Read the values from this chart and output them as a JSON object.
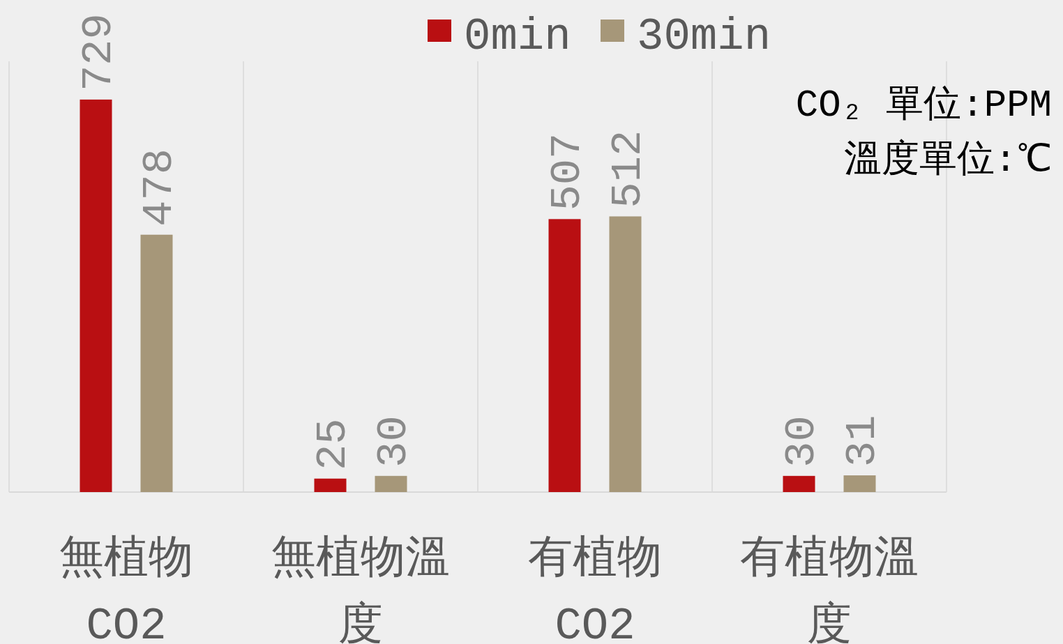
{
  "chart_data": {
    "type": "bar",
    "categories": [
      "無植物CO2",
      "無植物溫度",
      "有植物CO2",
      "有植物溫度"
    ],
    "series": [
      {
        "name": "0min",
        "color": "#b90f12",
        "values": [
          729,
          25,
          507,
          30
        ]
      },
      {
        "name": "30min",
        "color": "#a69779",
        "values": [
          478,
          30,
          512,
          31
        ]
      }
    ],
    "ylim": [
      0,
      800
    ],
    "tick_labels": "x",
    "data_labels": true,
    "grid": "x",
    "legend": "top",
    "annotations": [
      "CO₂ 單位:PPM",
      "溫度單位:℃"
    ]
  }
}
